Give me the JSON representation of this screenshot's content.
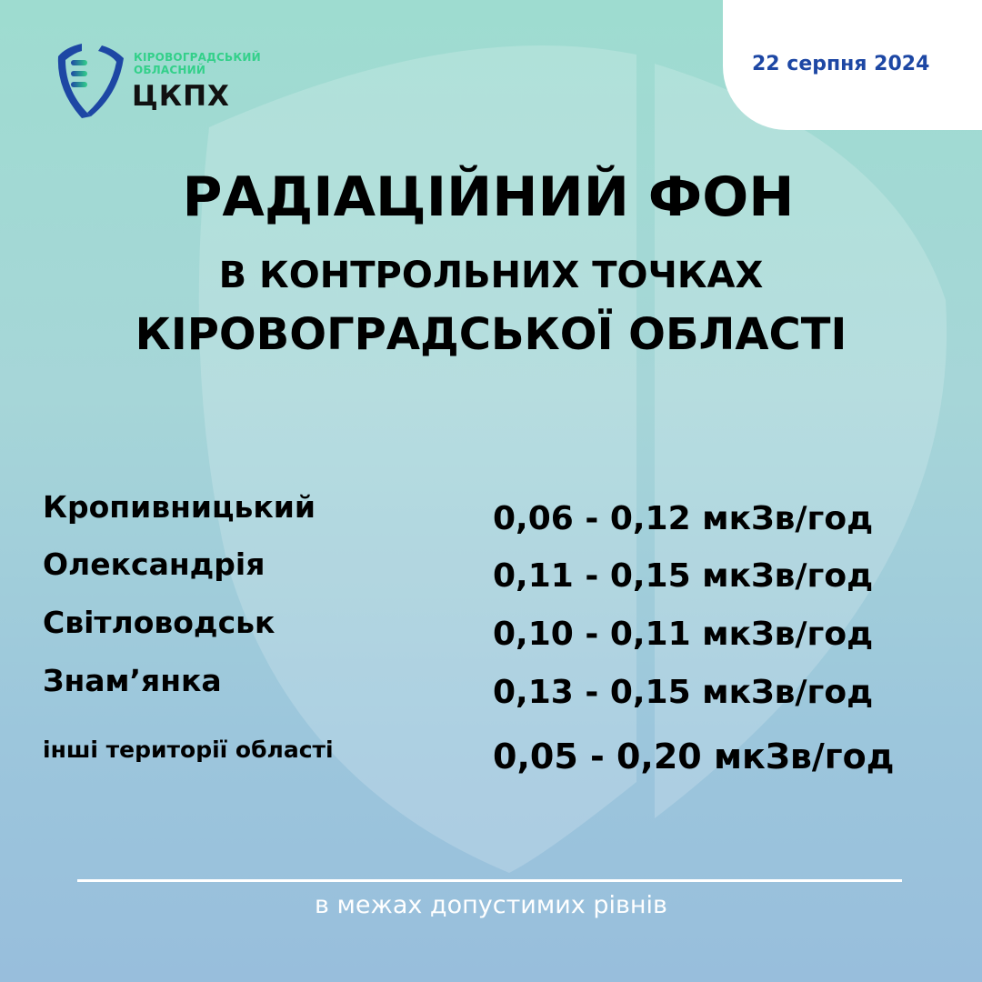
{
  "logo": {
    "line1": "КІРОВОГРАДСЬКИЙ",
    "line2": "ОБЛАСНИЙ",
    "name": "ЦКПХ"
  },
  "date": "22 серпня 2024",
  "title": {
    "line1": "РАДІАЦІЙНИЙ ФОН",
    "line2": "В КОНТРОЛЬНИХ ТОЧКАХ",
    "line3": "КІРОВОГРАДСЬКОЇ ОБЛАСТІ"
  },
  "readings": [
    {
      "place": "Кропивницький",
      "value": "0,06 - 0,12 мкЗв/год"
    },
    {
      "place": "Олександрія",
      "value": "0,11 - 0,15 мкЗв/год"
    },
    {
      "place": "Світловодськ",
      "value": "0,10 - 0,11 мкЗв/год"
    },
    {
      "place": "Знам’янка",
      "value": "0,13 - 0,15 мкЗв/год"
    },
    {
      "place": "інші території області",
      "value": "0,05 - 0,20 мкЗв/год"
    }
  ],
  "footer": "в межах допустимих рівнів",
  "colors": {
    "date": "#1d47a4",
    "logo_green": "#33d08a",
    "logo_blue": "#1d47a4"
  }
}
